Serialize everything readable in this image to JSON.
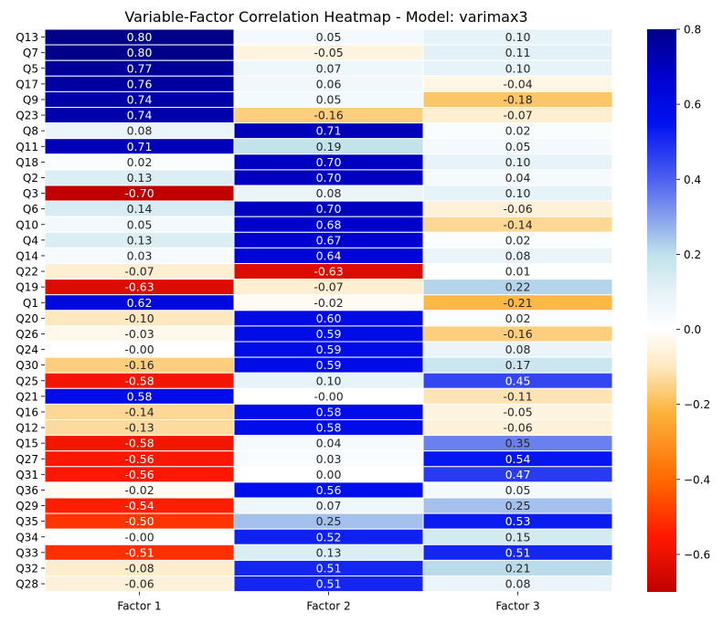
{
  "chart_data": {
    "type": "heatmap",
    "title": "Variable-Factor Correlation Heatmap - Model: varimax3",
    "xlabel": "",
    "ylabel": "",
    "columns": [
      "Factor 1",
      "Factor 2",
      "Factor 3"
    ],
    "rows": [
      "Q13",
      "Q7",
      "Q5",
      "Q17",
      "Q9",
      "Q23",
      "Q8",
      "Q11",
      "Q18",
      "Q2",
      "Q3",
      "Q6",
      "Q10",
      "Q4",
      "Q14",
      "Q22",
      "Q19",
      "Q1",
      "Q20",
      "Q26",
      "Q24",
      "Q30",
      "Q25",
      "Q21",
      "Q16",
      "Q12",
      "Q15",
      "Q27",
      "Q31",
      "Q36",
      "Q29",
      "Q35",
      "Q34",
      "Q33",
      "Q32",
      "Q28"
    ],
    "values": [
      [
        0.8,
        0.05,
        0.1
      ],
      [
        0.8,
        -0.05,
        0.11
      ],
      [
        0.77,
        0.07,
        0.1
      ],
      [
        0.76,
        0.06,
        -0.04
      ],
      [
        0.74,
        0.05,
        -0.18
      ],
      [
        0.74,
        -0.16,
        -0.07
      ],
      [
        0.08,
        0.71,
        0.02
      ],
      [
        0.71,
        0.19,
        0.05
      ],
      [
        0.02,
        0.7,
        0.1
      ],
      [
        0.13,
        0.7,
        0.04
      ],
      [
        -0.7,
        0.08,
        0.1
      ],
      [
        0.14,
        0.7,
        -0.06
      ],
      [
        0.05,
        0.68,
        -0.14
      ],
      [
        0.13,
        0.67,
        0.02
      ],
      [
        0.03,
        0.64,
        0.08
      ],
      [
        -0.07,
        -0.63,
        0.01
      ],
      [
        -0.63,
        -0.07,
        0.22
      ],
      [
        0.62,
        -0.02,
        -0.21
      ],
      [
        -0.1,
        0.6,
        0.02
      ],
      [
        -0.03,
        0.59,
        -0.16
      ],
      [
        -0.0,
        0.59,
        0.08
      ],
      [
        -0.16,
        0.59,
        0.17
      ],
      [
        -0.58,
        0.1,
        0.45
      ],
      [
        0.58,
        -0.0,
        -0.11
      ],
      [
        -0.14,
        0.58,
        -0.05
      ],
      [
        -0.13,
        0.58,
        -0.06
      ],
      [
        -0.58,
        0.04,
        0.35
      ],
      [
        -0.56,
        0.03,
        0.54
      ],
      [
        -0.56,
        0.0,
        0.47
      ],
      [
        -0.02,
        0.56,
        0.05
      ],
      [
        -0.54,
        0.07,
        0.25
      ],
      [
        -0.5,
        0.25,
        0.53
      ],
      [
        -0.0,
        0.52,
        0.15
      ],
      [
        -0.51,
        0.13,
        0.51
      ],
      [
        -0.08,
        0.51,
        0.21
      ],
      [
        -0.06,
        0.51,
        0.08
      ]
    ],
    "colorbar": {
      "vmin": -0.7,
      "vmax": 0.8,
      "ticks": [
        -0.6,
        -0.4,
        -0.2,
        0.0,
        0.2,
        0.4,
        0.6,
        0.8
      ],
      "tick_labels": [
        "−0.6",
        "−0.4",
        "−0.2",
        "0.0",
        "0.2",
        "0.4",
        "0.6",
        "0.8"
      ],
      "colormap_stops": [
        {
          "v": -0.7,
          "color": "#c00000"
        },
        {
          "v": -0.55,
          "color": "#ff1a00"
        },
        {
          "v": -0.4,
          "color": "#ff6a00"
        },
        {
          "v": -0.22,
          "color": "#fbb43c"
        },
        {
          "v": -0.1,
          "color": "#fee8c0"
        },
        {
          "v": 0.0,
          "color": "#ffffff"
        },
        {
          "v": 0.1,
          "color": "#e6f3f8"
        },
        {
          "v": 0.2,
          "color": "#bfe1ea"
        },
        {
          "v": 0.4,
          "color": "#4d60f0"
        },
        {
          "v": 0.55,
          "color": "#0011f0"
        },
        {
          "v": 0.68,
          "color": "#0000cc"
        },
        {
          "v": 0.8,
          "color": "#000088"
        }
      ]
    },
    "annotation_format": "2 decimals"
  }
}
